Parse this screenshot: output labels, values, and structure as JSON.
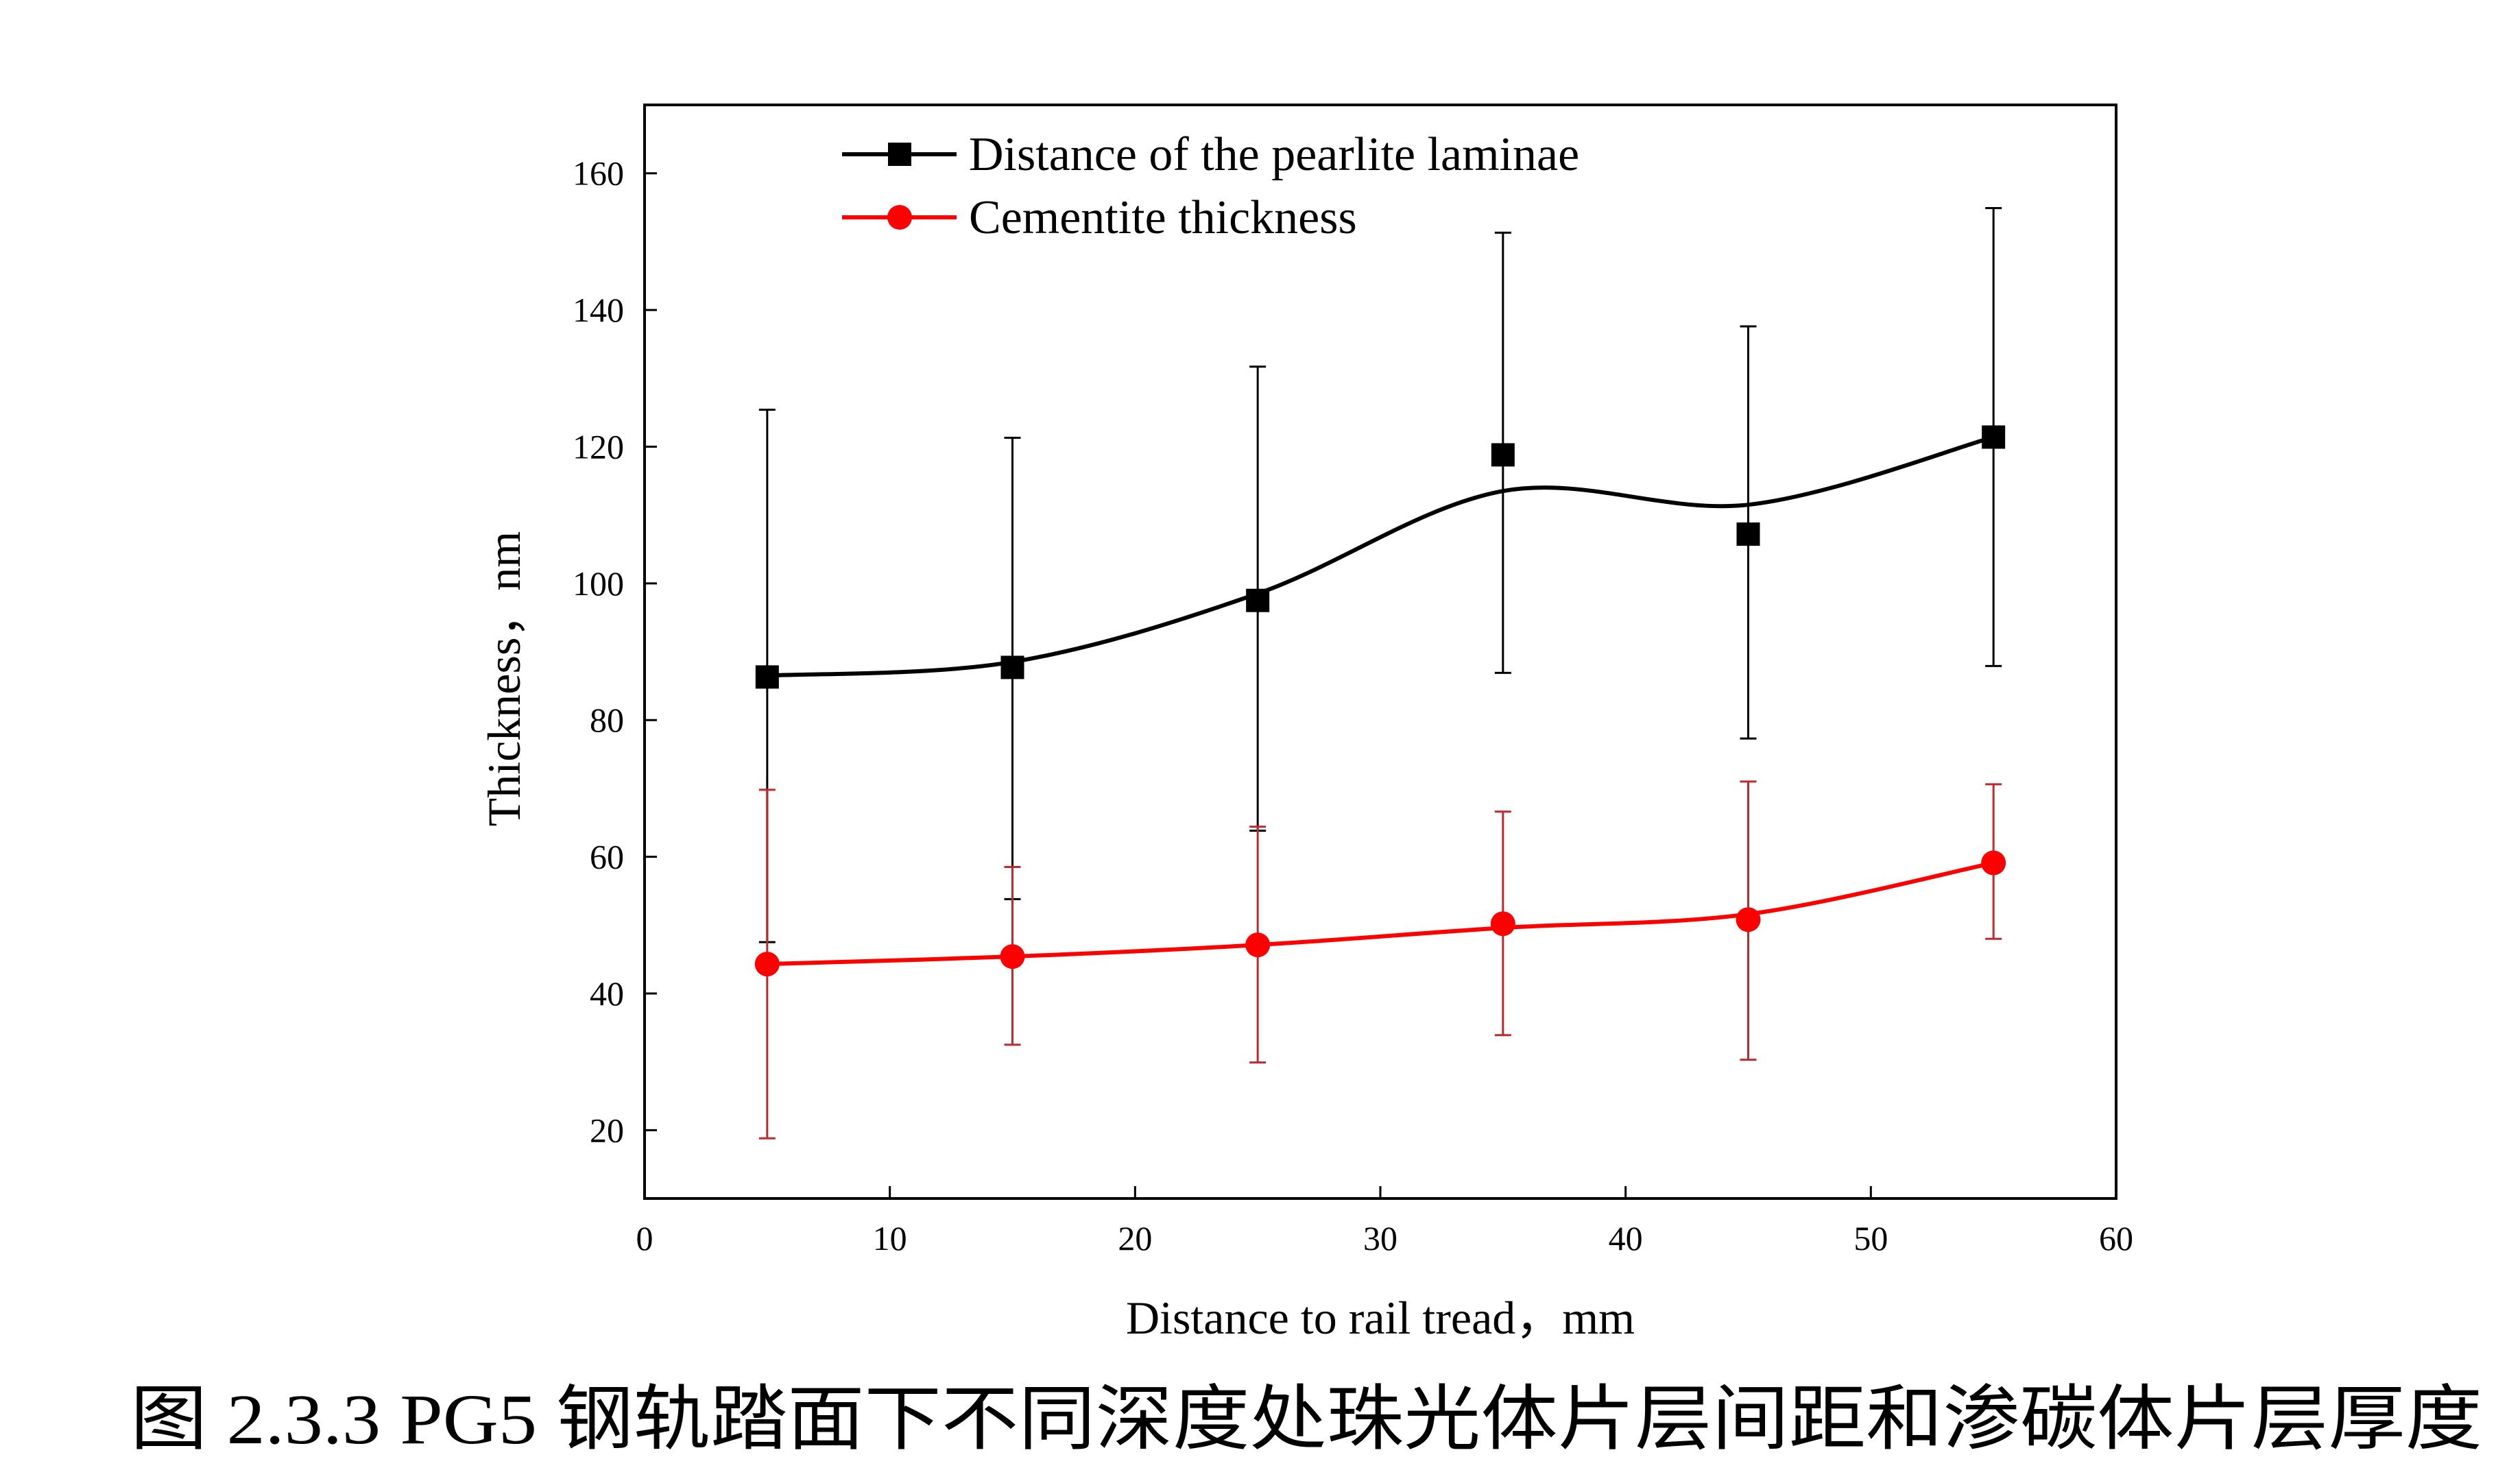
{
  "chart_data": {
    "type": "line",
    "title": "",
    "xlabel": "Distance to rail tread，mm",
    "ylabel": "Thickness，nm",
    "xlim": [
      0,
      60
    ],
    "ylim": [
      10,
      170
    ],
    "xticks": [
      0,
      10,
      20,
      30,
      40,
      50,
      60
    ],
    "yticks": [
      20,
      40,
      60,
      80,
      100,
      120,
      140,
      160
    ],
    "grid": false,
    "legend_position": "top-left",
    "x": [
      5,
      15,
      25,
      35,
      45,
      55
    ],
    "series": [
      {
        "name": "Distance of the pearlite laminae",
        "color": "#000000",
        "marker": "square",
        "values": [
          86.3,
          87.7,
          97.5,
          118.8,
          107.2,
          121.4
        ],
        "error_upper": [
          125.4,
          121.3,
          131.7,
          151.3,
          137.6,
          154.9
        ],
        "error_lower": [
          47.5,
          53.8,
          63.8,
          86.9,
          77.3,
          87.9
        ],
        "fit_curve": [
          86.5,
          88.5,
          98.5,
          113.5,
          111.5,
          121.4
        ]
      },
      {
        "name": "Cementite thickness",
        "color": "#ff0000",
        "error_color": "#c0282d",
        "marker": "circle",
        "values": [
          44.3,
          45.4,
          47.1,
          50.2,
          50.8,
          59.1
        ],
        "error_upper": [
          69.8,
          58.5,
          64.4,
          66.6,
          71.0,
          70.6
        ],
        "error_lower": [
          18.8,
          32.5,
          29.9,
          33.9,
          30.3,
          48.0
        ],
        "fit_curve": [
          44.3,
          45.4,
          47.1,
          49.6,
          51.6,
          59.1
        ]
      }
    ],
    "caption": "图 2.3.3 PG5 钢轨踏面下不同深度处珠光体片层间距和渗碳体片层厚度"
  }
}
